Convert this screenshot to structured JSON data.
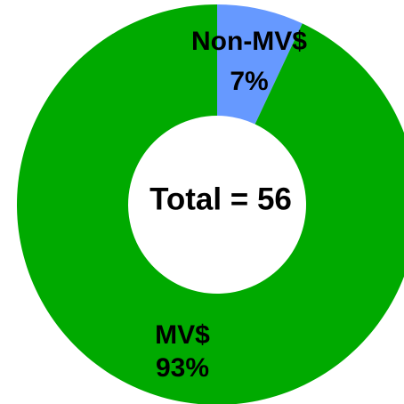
{
  "chart_data": {
    "type": "pie",
    "center_text": "Total = 56",
    "categories": [
      "Non-MV$",
      "MV$"
    ],
    "values": [
      7,
      93
    ],
    "value_labels": [
      "7%",
      "93%"
    ],
    "colors": [
      "#6699ff",
      "#00aa00"
    ]
  }
}
